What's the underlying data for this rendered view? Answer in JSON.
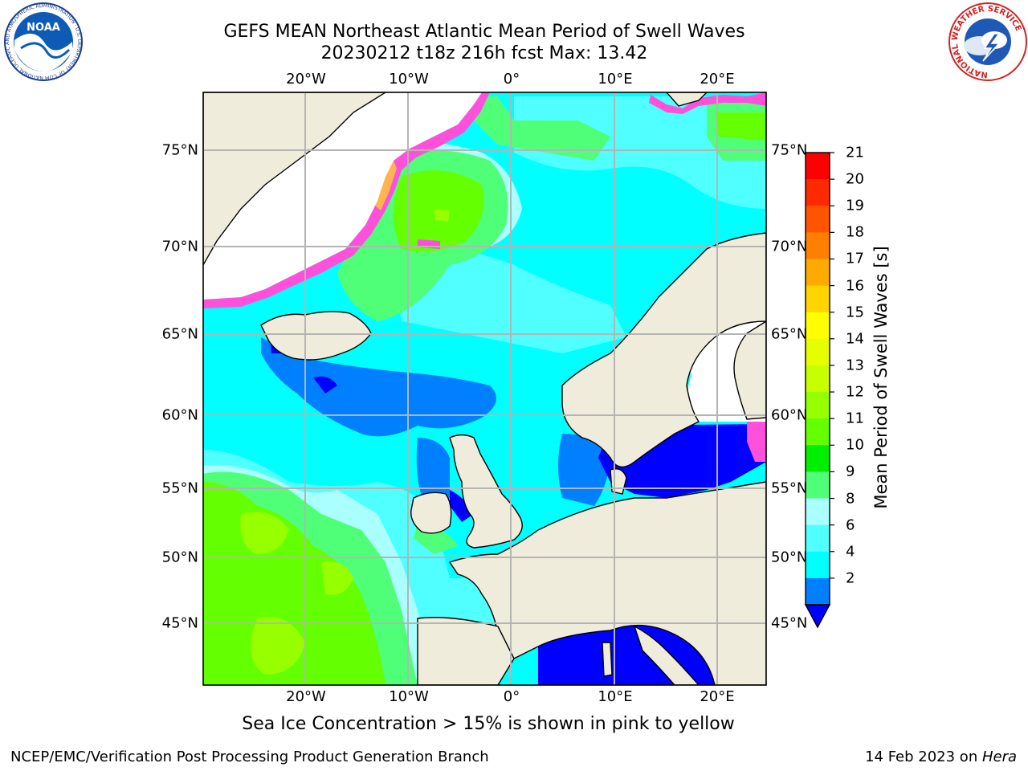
{
  "title": {
    "line1": "GEFS MEAN Northeast Atlantic Mean Period of Swell Waves",
    "line2": "20230212 t18z 216h fcst   Max: 13.42"
  },
  "map": {
    "longitude_labels": [
      "20°W",
      "10°W",
      "0°",
      "10°E",
      "20°E"
    ],
    "latitude_labels": [
      "75°N",
      "70°N",
      "65°N",
      "60°N",
      "55°N",
      "50°N",
      "45°N"
    ],
    "land_color": "#efecdb",
    "ocean_background_color": "#00ffff"
  },
  "colorbar": {
    "title": "Mean Period of Swell Waves [s]",
    "ticks": [
      "21",
      "20",
      "19",
      "18",
      "17",
      "16",
      "15",
      "14",
      "13",
      "12",
      "11",
      "10",
      "9",
      "8",
      "6",
      "4",
      "2"
    ],
    "colors": [
      "#ff0000",
      "#ff2a00",
      "#ff5400",
      "#ff8000",
      "#ffaa00",
      "#ffd400",
      "#ffff00",
      "#e6ff00",
      "#c8ff00",
      "#96ff00",
      "#64ff00",
      "#00ee00",
      "#50ff78",
      "#aaffff",
      "#50ffff",
      "#00ffff",
      "#0080ff",
      "#0000ff"
    ]
  },
  "note": "Sea Ice Concentration > 15% is shown in pink to yellow",
  "footer": {
    "left": "NCEP/EMC/Verification Post Processing Product Generation Branch",
    "date": "14 Feb 2023 on ",
    "machine": "Hera"
  },
  "logos": {
    "noaa_text": "NOAA",
    "noaa_ring_text": "NATIONAL OCEANIC AND ATMOSPHERIC ADMINISTRATION · U.S. DEPARTMENT OF COMMERCE",
    "nws_ring_text": "NATIONAL WEATHER SERVICE"
  }
}
